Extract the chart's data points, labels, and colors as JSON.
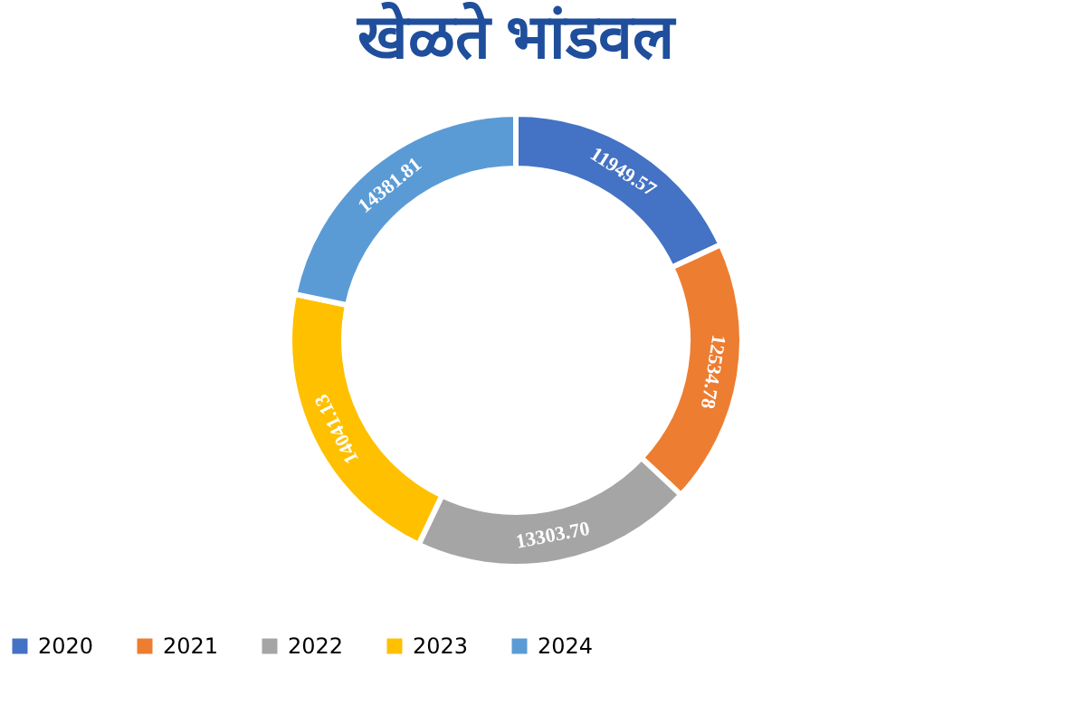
{
  "chart_data": {
    "type": "donut",
    "title": "खेळते भांडवल",
    "categories": [
      "2020",
      "2021",
      "2022",
      "2023",
      "2024"
    ],
    "values": [
      11949.57,
      12534.78,
      13303.7,
      14041.13,
      14381.81
    ],
    "value_labels": [
      "11949.57",
      "12534.78",
      "13303.70",
      "14041.13",
      "14381.81"
    ],
    "colors": [
      "#4472c4",
      "#ed7d31",
      "#a5a5a5",
      "#ffc000",
      "#5b9bd5"
    ],
    "legend": "bottom"
  }
}
